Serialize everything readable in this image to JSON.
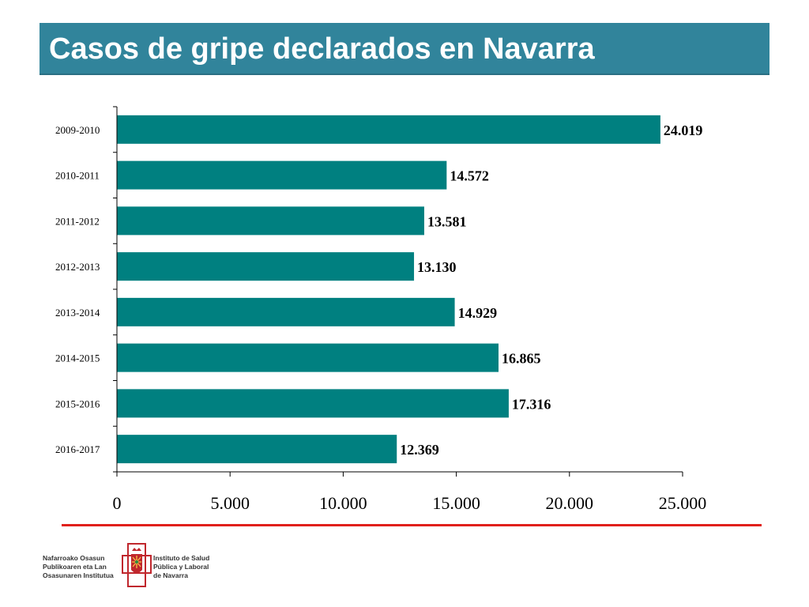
{
  "header": {
    "title": "Casos de gripe declarados en Navarra",
    "background": "#31849b"
  },
  "chart_data": {
    "type": "bar",
    "orientation": "horizontal",
    "title": "",
    "xlabel": "",
    "ylabel": "",
    "categories": [
      "2009-2010",
      "2010-2011",
      "2011-2012",
      "2012-2013",
      "2013-2014",
      "2014-2015",
      "2015-2016",
      "2016-2017"
    ],
    "values": [
      24019,
      14572,
      13581,
      13130,
      14929,
      16865,
      17316,
      12369
    ],
    "value_labels": [
      "24.019",
      "14.572",
      "13.581",
      "13.130",
      "14.929",
      "16.865",
      "17.316",
      "12.369"
    ],
    "xlim": [
      0,
      25000
    ],
    "x_ticks": [
      0,
      5000,
      10000,
      15000,
      20000,
      25000
    ],
    "x_tick_labels": [
      "0",
      "5.000",
      "10.000",
      "15.000",
      "20.000",
      "25.000"
    ],
    "bar_color": "#008080",
    "grid": false,
    "legend": "none"
  },
  "footer": {
    "left_org": [
      "Nafarroako Osasun",
      "Publikoaren eta Lan",
      "Osasunaren Institutua"
    ],
    "right_org": [
      "Instituto de Salud",
      "Pública y Laboral",
      "de Navarra"
    ],
    "emblem_icon": "navarra-coat-of-arms-icon",
    "accent_color": "#e0201b"
  }
}
